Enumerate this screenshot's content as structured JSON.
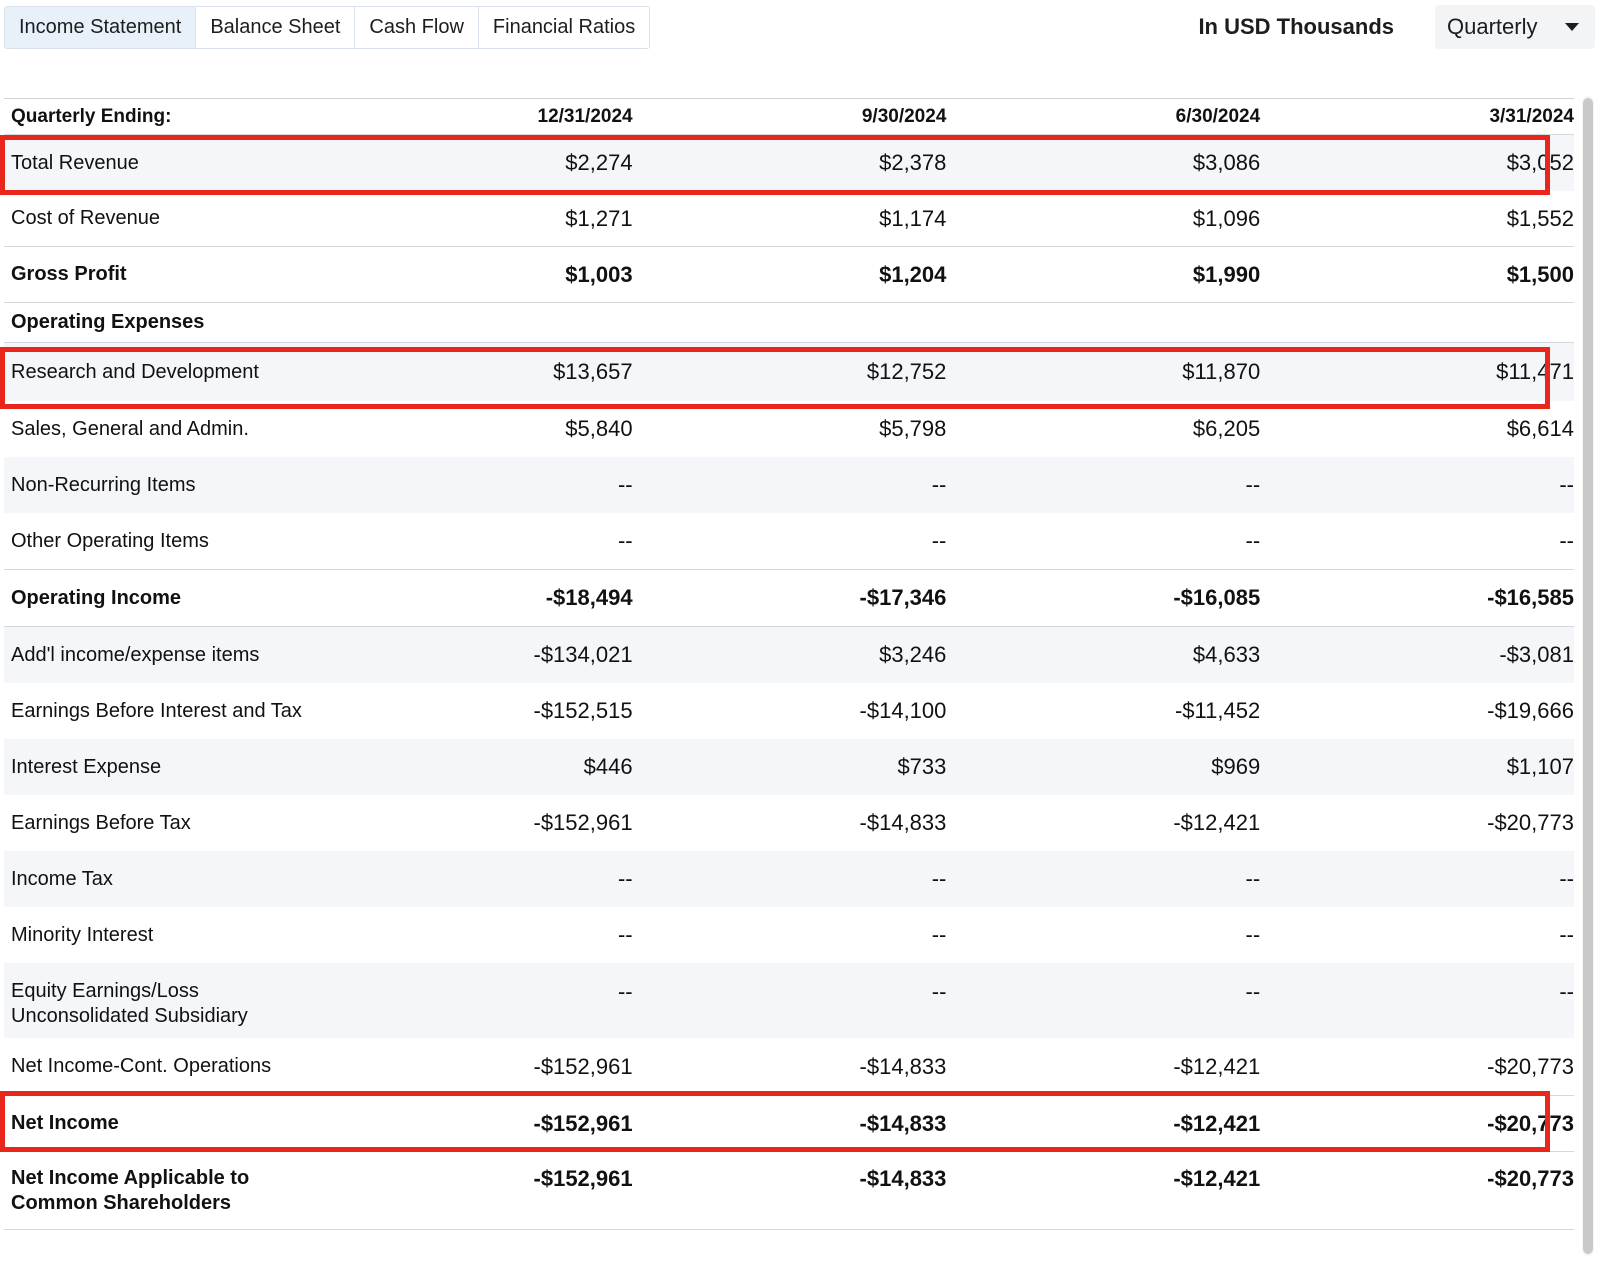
{
  "tabs": [
    {
      "label": "Income Statement",
      "active": true
    },
    {
      "label": "Balance Sheet"
    },
    {
      "label": "Cash Flow"
    },
    {
      "label": "Financial Ratios"
    }
  ],
  "units_label": "In USD Thousands",
  "period_select": {
    "value": "Quarterly"
  },
  "table": {
    "header": {
      "label": "Quarterly Ending:",
      "columns": [
        "12/31/2024",
        "9/30/2024",
        "6/30/2024",
        "3/31/2024"
      ]
    },
    "rows": [
      {
        "label": "Total Revenue",
        "values": [
          "$2,274",
          "$2,378",
          "$3,086",
          "$3,052"
        ]
      },
      {
        "label": "Cost of Revenue",
        "values": [
          "$1,271",
          "$1,174",
          "$1,096",
          "$1,552"
        ]
      },
      {
        "label": "Gross Profit",
        "values": [
          "$1,003",
          "$1,204",
          "$1,990",
          "$1,500"
        ]
      },
      {
        "label": "Operating Expenses",
        "values": [
          "",
          "",
          "",
          ""
        ]
      },
      {
        "label": "Research and Development",
        "values": [
          "$13,657",
          "$12,752",
          "$11,870",
          "$11,471"
        ]
      },
      {
        "label": "Sales, General and Admin.",
        "values": [
          "$5,840",
          "$5,798",
          "$6,205",
          "$6,614"
        ]
      },
      {
        "label": "Non-Recurring Items",
        "values": [
          "--",
          "--",
          "--",
          "--"
        ]
      },
      {
        "label": "Other Operating Items",
        "values": [
          "--",
          "--",
          "--",
          "--"
        ]
      },
      {
        "label": "Operating Income",
        "values": [
          "-$18,494",
          "-$17,346",
          "-$16,085",
          "-$16,585"
        ]
      },
      {
        "label": "Add'l income/expense items",
        "values": [
          "-$134,021",
          "$3,246",
          "$4,633",
          "-$3,081"
        ]
      },
      {
        "label": "Earnings Before Interest and Tax",
        "values": [
          "-$152,515",
          "-$14,100",
          "-$11,452",
          "-$19,666"
        ]
      },
      {
        "label": "Interest Expense",
        "values": [
          "$446",
          "$733",
          "$969",
          "$1,107"
        ]
      },
      {
        "label": "Earnings Before Tax",
        "values": [
          "-$152,961",
          "-$14,833",
          "-$12,421",
          "-$20,773"
        ]
      },
      {
        "label": "Income Tax",
        "values": [
          "--",
          "--",
          "--",
          "--"
        ]
      },
      {
        "label": "Minority Interest",
        "values": [
          "--",
          "--",
          "--",
          "--"
        ]
      },
      {
        "label": "Equity Earnings/Loss Unconsolidated Subsidiary",
        "values": [
          "--",
          "--",
          "--",
          "--"
        ]
      },
      {
        "label": "Net Income-Cont. Operations",
        "values": [
          "-$152,961",
          "-$14,833",
          "-$12,421",
          "-$20,773"
        ]
      },
      {
        "label": "Net Income",
        "values": [
          "-$152,961",
          "-$14,833",
          "-$12,421",
          "-$20,773"
        ]
      },
      {
        "label": "Net Income Applicable to Common Shareholders",
        "values": [
          "-$152,961",
          "-$14,833",
          "-$12,421",
          "-$20,773"
        ]
      }
    ]
  },
  "highlight_color": "#e8261c"
}
